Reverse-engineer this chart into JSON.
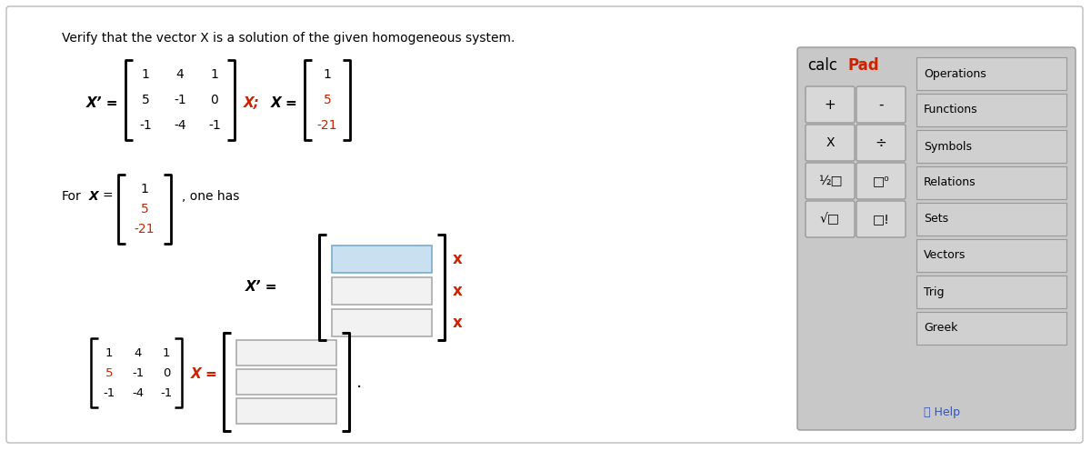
{
  "title": "Verify that the vector X is a solution of the given homogeneous system.",
  "bg_color": "#ffffff",
  "border_color": "#cccccc",
  "red_color": "#cc2200",
  "blue_box_fill": "#c8e0f0",
  "blue_box_border": "#7aabcc",
  "gray_box_fill": "#f2f2f2",
  "gray_box_border": "#aaaaaa",
  "calcpad_bg": "#c8c8c8",
  "calcpad_title_calc": "#000000",
  "calcpad_title_pad": "#cc2200",
  "btn_bg": "#d8d8d8",
  "btn_border": "#999999",
  "cat_bg": "#d0d0d0",
  "cat_border": "#999999",
  "cat_items": [
    "Operations",
    "Functions",
    "Symbols",
    "Relations",
    "Sets",
    "Vectors",
    "Trig",
    "Greek"
  ],
  "matrix_entries_top": [
    [
      "1",
      "4",
      "1"
    ],
    [
      "5",
      "-1",
      "0"
    ],
    [
      "-1",
      "-4",
      "-1"
    ]
  ],
  "vector_entries_top": [
    "1",
    "5",
    "-21"
  ],
  "vector_for_x": [
    "1",
    "5",
    "-21"
  ],
  "matrix_entries_bot": [
    [
      "1",
      "4",
      "1"
    ],
    [
      "5",
      "-1",
      "0"
    ],
    [
      "-1",
      "-4",
      "-1"
    ]
  ]
}
